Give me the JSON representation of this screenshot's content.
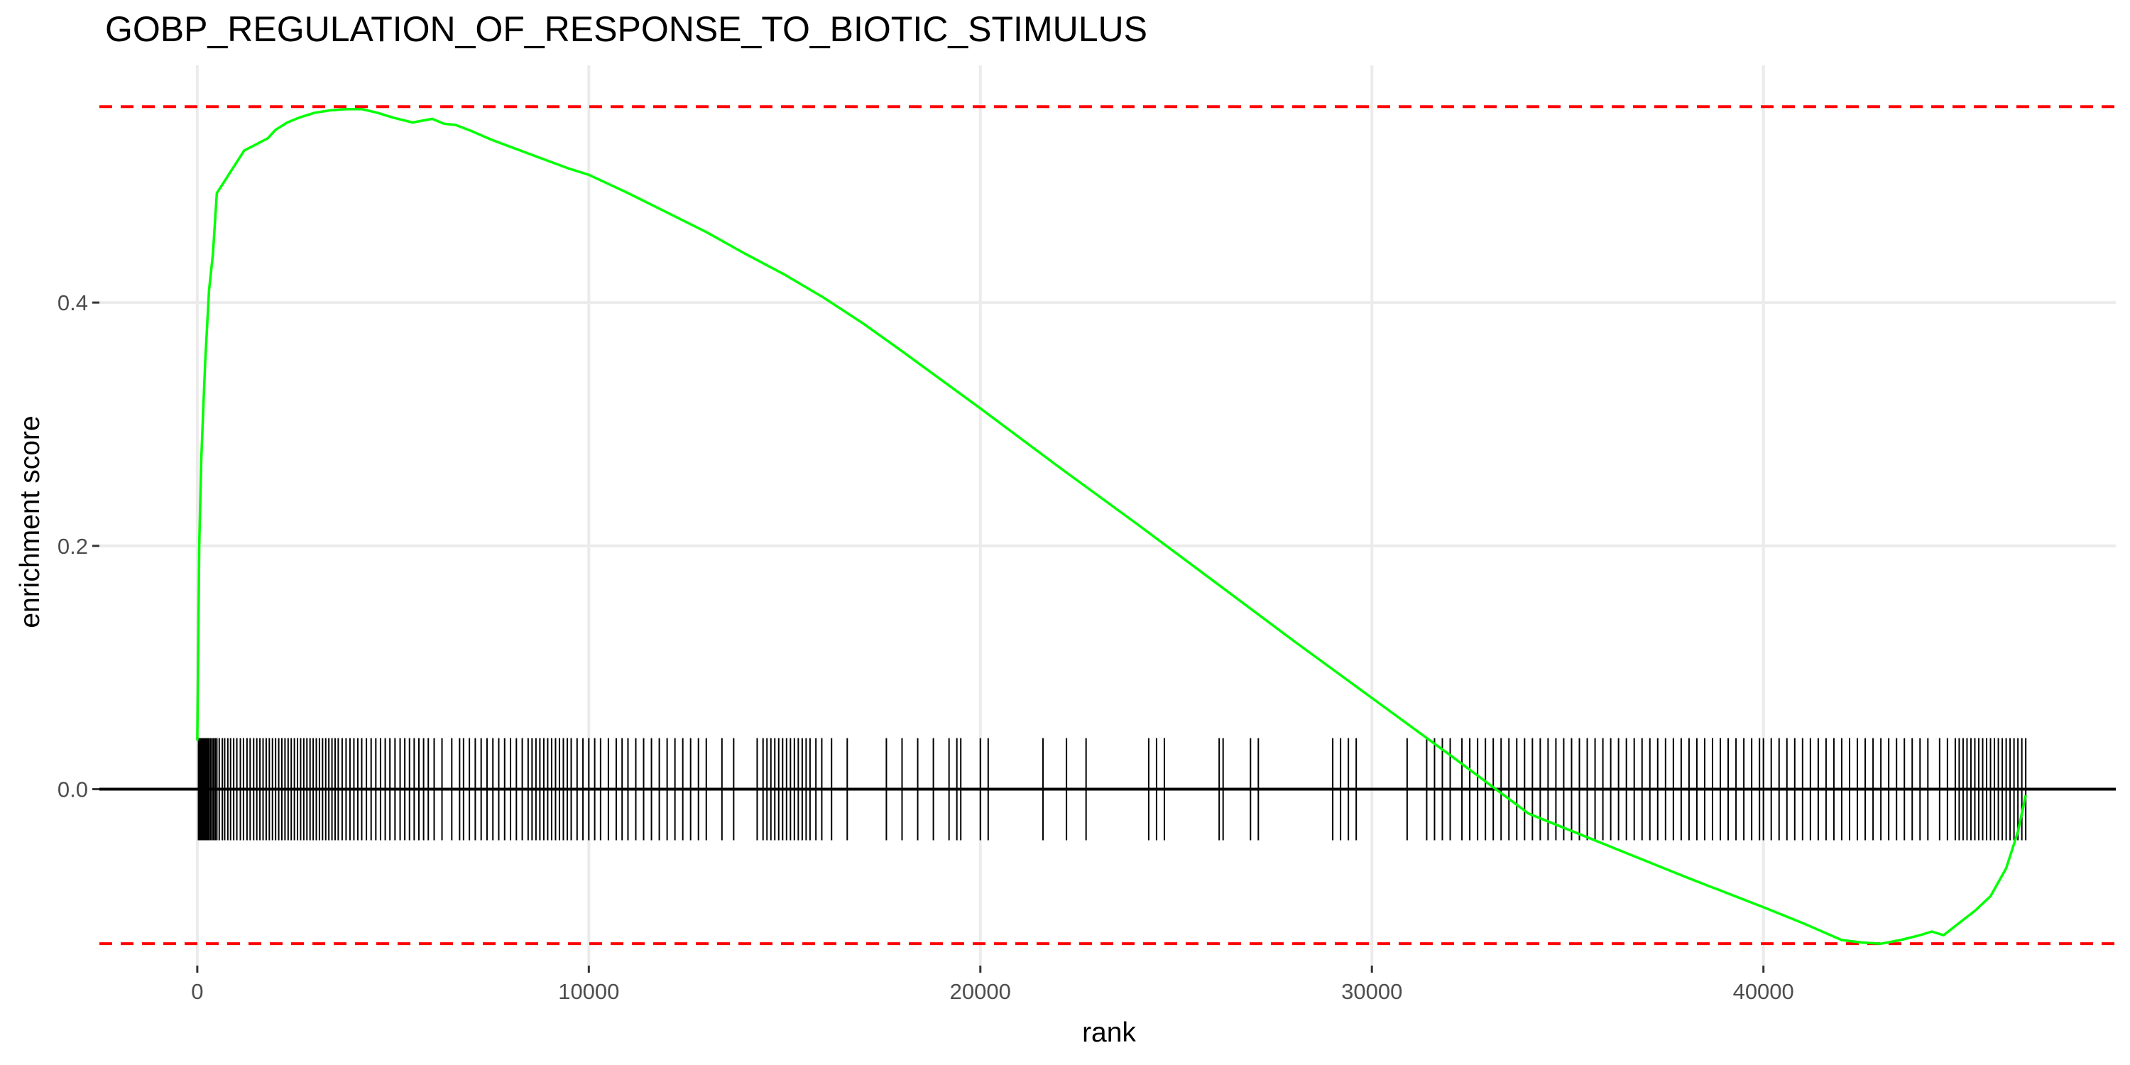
{
  "chart_data": {
    "type": "line",
    "title": "GOBP_REGULATION_OF_RESPONSE_TO_BIOTIC_STIMULUS",
    "xlabel": "rank",
    "ylabel": "enrichment score",
    "xlim": [
      -2500,
      49000
    ],
    "ylim": [
      -0.145,
      0.595
    ],
    "x_ticks": [
      {
        "value": 0,
        "label": "0"
      },
      {
        "value": 10000,
        "label": "10000"
      },
      {
        "value": 20000,
        "label": "20000"
      },
      {
        "value": 30000,
        "label": "30000"
      },
      {
        "value": 40000,
        "label": "40000"
      }
    ],
    "y_ticks": [
      {
        "value": 0.0,
        "label": "0.0"
      },
      {
        "value": 0.2,
        "label": "0.2"
      },
      {
        "value": 0.4,
        "label": "0.4"
      }
    ],
    "grid": true,
    "colors": {
      "curve": "#00ff00",
      "reference_lines": "#ff0000",
      "rug": "#000000",
      "grid": "#ebebeb"
    },
    "reference_lines": [
      {
        "orientation": "horizontal",
        "value": 0.561,
        "style": "dashed"
      },
      {
        "orientation": "horizontal",
        "value": -0.127,
        "style": "dashed"
      },
      {
        "orientation": "horizontal",
        "value": 0.0,
        "style": "solid"
      }
    ],
    "rug_half_height": 0.042,
    "series": [
      {
        "x": [
          0,
          50,
          100,
          150,
          200,
          300,
          400,
          500,
          600,
          800,
          1000,
          1200,
          1500,
          1800,
          2000,
          2300,
          2600,
          3000,
          3400,
          3800,
          4200,
          4600,
          5000,
          5500,
          6000,
          6300,
          6600,
          7000,
          7500,
          8000,
          8500,
          9000,
          9500,
          10000,
          11000,
          12000,
          13000,
          14000,
          15000,
          16000,
          17000,
          18000,
          20000,
          22000,
          24000,
          26000,
          28000,
          30000,
          32000,
          34000,
          36000,
          38000,
          40000,
          41000,
          42000,
          42500,
          43000,
          43500,
          44000,
          44300,
          44600,
          45000,
          45400,
          45800,
          46200,
          46500,
          46700
        ],
        "y": [
          0.04,
          0.2,
          0.27,
          0.31,
          0.35,
          0.41,
          0.44,
          0.49,
          0.495,
          0.505,
          0.515,
          0.525,
          0.53,
          0.535,
          0.542,
          0.548,
          0.552,
          0.556,
          0.558,
          0.559,
          0.559,
          0.556,
          0.552,
          0.548,
          0.551,
          0.547,
          0.546,
          0.541,
          0.534,
          0.528,
          0.522,
          0.516,
          0.51,
          0.505,
          0.49,
          0.474,
          0.458,
          0.44,
          0.423,
          0.404,
          0.383,
          0.36,
          0.313,
          0.265,
          0.218,
          0.17,
          0.122,
          0.075,
          0.028,
          -0.02,
          -0.046,
          -0.072,
          -0.097,
          -0.11,
          -0.124,
          -0.126,
          -0.127,
          -0.124,
          -0.12,
          -0.117,
          -0.12,
          -0.11,
          -0.1,
          -0.088,
          -0.065,
          -0.035,
          -0.005
        ]
      }
    ],
    "hits": [
      30,
      60,
      90,
      120,
      150,
      180,
      210,
      240,
      270,
      300,
      340,
      380,
      420,
      460,
      500,
      560,
      640,
      700,
      780,
      850,
      930,
      1010,
      1100,
      1180,
      1270,
      1350,
      1440,
      1520,
      1600,
      1680,
      1760,
      1840,
      1920,
      2000,
      2080,
      2160,
      2240,
      2320,
      2400,
      2480,
      2560,
      2640,
      2720,
      2800,
      2880,
      2960,
      3040,
      3120,
      3200,
      3280,
      3360,
      3440,
      3520,
      3600,
      3700,
      3800,
      3900,
      4000,
      4100,
      4200,
      4320,
      4440,
      4560,
      4680,
      4800,
      4920,
      5050,
      5180,
      5300,
      5420,
      5540,
      5660,
      5780,
      5900,
      6050,
      6250,
      6500,
      6700,
      6800,
      6950,
      7100,
      7250,
      7400,
      7550,
      7700,
      7850,
      8000,
      8150,
      8300,
      8450,
      8550,
      8650,
      8750,
      8850,
      8950,
      9050,
      9150,
      9250,
      9350,
      9450,
      9550,
      9700,
      9850,
      10000,
      10150,
      10300,
      10500,
      10700,
      10850,
      11000,
      11200,
      11400,
      11600,
      11800,
      12000,
      12200,
      12400,
      12600,
      12800,
      13000,
      13400,
      13700,
      14300,
      14450,
      14550,
      14650,
      14750,
      14850,
      14950,
      15050,
      15150,
      15250,
      15350,
      15450,
      15550,
      15650,
      15800,
      15950,
      16200,
      16600,
      17600,
      18000,
      18400,
      18800,
      19200,
      19400,
      19500,
      20000,
      20200,
      21600,
      22200,
      22700,
      24300,
      24500,
      24700,
      26100,
      26200,
      26900,
      27100,
      29000,
      29200,
      29400,
      29600,
      30900,
      31400,
      31600,
      31800,
      32000,
      32300,
      32500,
      32700,
      32900,
      33100,
      33300,
      33500,
      33700,
      33900,
      34100,
      34300,
      34500,
      34700,
      34900,
      35100,
      35300,
      35500,
      35700,
      35900,
      36100,
      36300,
      36500,
      36700,
      36900,
      37100,
      37300,
      37500,
      37700,
      37900,
      38100,
      38300,
      38500,
      38700,
      38900,
      39100,
      39300,
      39500,
      39700,
      39900,
      40000,
      40200,
      40400,
      40600,
      40800,
      41000,
      41200,
      41400,
      41600,
      41800,
      42000,
      42200,
      42400,
      42600,
      42800,
      43000,
      43200,
      43400,
      43600,
      43800,
      44000,
      44200,
      44500,
      44700,
      44900,
      45000,
      45100,
      45200,
      45300,
      45400,
      45500,
      45600,
      45700,
      45800,
      45900,
      46000,
      46100,
      46200,
      46300,
      46400,
      46500,
      46600,
      46700
    ]
  }
}
